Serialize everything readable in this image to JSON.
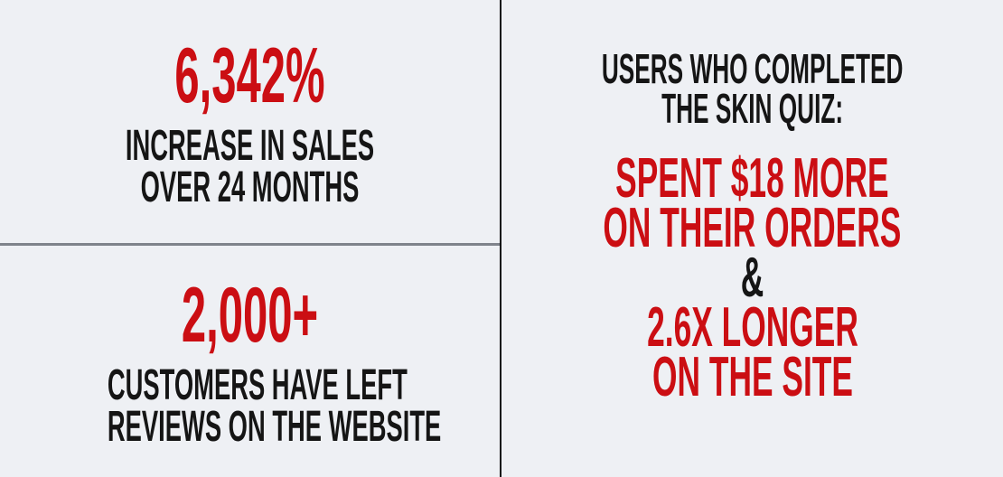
{
  "colors": {
    "background": "#eef0f4",
    "accent_red": "#cb0e13",
    "text_black": "#151515",
    "divider_gray": "#7f838b",
    "divider_black": "#121212"
  },
  "left_column": {
    "sales_stat": {
      "value": "6,342%",
      "label_line1": "INCREASE IN SALES",
      "label_line2": "OVER 24 MONTHS"
    },
    "reviews_stat": {
      "value": "2,000+",
      "label_line1": "CUSTOMERS HAVE LEFT",
      "label_line2": "REVIEWS ON THE WEBSITE"
    }
  },
  "right_column": {
    "heading_line1": "USERS WHO COMPLETED",
    "heading_line2": "THE SKIN QUIZ:",
    "spend_stat_line1": "SPENT $18 MORE",
    "spend_stat_line2": "ON THEIR ORDERS",
    "conjunction": "&",
    "time_stat_line1": "2.6X LONGER",
    "time_stat_line2": "ON THE SITE"
  }
}
